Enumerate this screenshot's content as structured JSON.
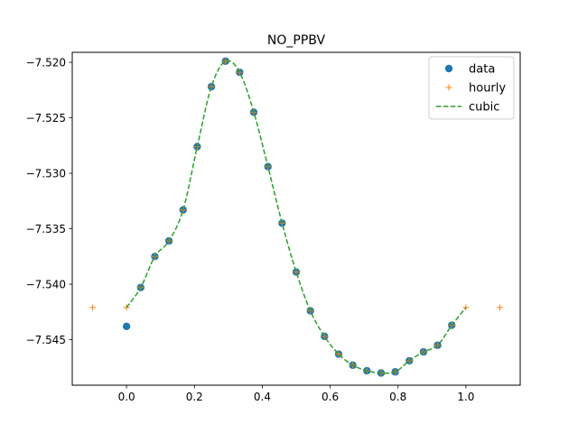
{
  "chart_data": {
    "type": "line",
    "title": "NO_PPBV",
    "xlabel": "",
    "ylabel": "",
    "xlim": [
      -0.16,
      1.16
    ],
    "ylim": [
      -7.5491,
      -7.5191
    ],
    "x_ticks": [
      0.0,
      0.2,
      0.4,
      0.6,
      0.8,
      1.0
    ],
    "x_tick_labels": [
      "0.0",
      "0.2",
      "0.4",
      "0.6",
      "0.8",
      "1.0"
    ],
    "y_ticks": [
      -7.52,
      -7.525,
      -7.53,
      -7.535,
      -7.54,
      -7.545
    ],
    "y_tick_labels": [
      "−7.520",
      "−7.525",
      "−7.530",
      "−7.535",
      "−7.540",
      "−7.545"
    ],
    "grid": false,
    "legend_position": "top-right",
    "series": [
      {
        "name": "data",
        "style": "markers-circle",
        "color": "#1f77b4",
        "x": [
          0.0,
          0.0417,
          0.0833,
          0.125,
          0.1667,
          0.2083,
          0.25,
          0.2917,
          0.3333,
          0.375,
          0.4167,
          0.4583,
          0.5,
          0.5417,
          0.5833,
          0.625,
          0.6667,
          0.7083,
          0.75,
          0.7917,
          0.8333,
          0.875,
          0.9167,
          0.9583
        ],
        "y": [
          -7.5438,
          -7.5403,
          -7.5375,
          -7.5361,
          -7.5333,
          -7.5276,
          -7.5222,
          -7.5199,
          -7.5209,
          -7.5245,
          -7.5294,
          -7.5345,
          -7.5389,
          -7.5424,
          -7.5447,
          -7.5463,
          -7.5473,
          -7.5478,
          -7.548,
          -7.5479,
          -7.5469,
          -7.5461,
          -7.5455,
          -7.5437
        ]
      },
      {
        "name": "hourly",
        "style": "markers-plus",
        "color": "#ff7f0e",
        "x": [
          -0.1,
          0.0,
          0.0417,
          0.0833,
          0.125,
          0.1667,
          0.2083,
          0.25,
          0.2917,
          0.3333,
          0.375,
          0.4167,
          0.4583,
          0.5,
          0.5417,
          0.5833,
          0.625,
          0.6667,
          0.7083,
          0.75,
          0.7917,
          0.8333,
          0.875,
          0.9167,
          0.9583,
          1.0,
          1.1
        ],
        "y": [
          -7.5421,
          -7.5421,
          -7.5403,
          -7.5375,
          -7.5361,
          -7.5333,
          -7.5276,
          -7.5222,
          -7.5199,
          -7.5209,
          -7.5245,
          -7.5294,
          -7.5345,
          -7.5389,
          -7.5424,
          -7.5447,
          -7.5463,
          -7.5473,
          -7.5478,
          -7.548,
          -7.5479,
          -7.5469,
          -7.5461,
          -7.5455,
          -7.5437,
          -7.5421,
          -7.5421
        ]
      },
      {
        "name": "cubic",
        "style": "dashed-line",
        "color": "#2ca02c",
        "x": [
          0.0,
          0.0417,
          0.0833,
          0.125,
          0.1667,
          0.2083,
          0.25,
          0.2917,
          0.3333,
          0.375,
          0.4167,
          0.4583,
          0.5,
          0.5417,
          0.5833,
          0.625,
          0.6667,
          0.7083,
          0.75,
          0.7917,
          0.8333,
          0.875,
          0.9167,
          0.9583,
          1.0
        ],
        "y": [
          -7.5421,
          -7.5403,
          -7.5375,
          -7.5361,
          -7.5333,
          -7.5276,
          -7.5222,
          -7.5199,
          -7.5209,
          -7.5245,
          -7.5294,
          -7.5345,
          -7.5389,
          -7.5424,
          -7.5447,
          -7.5463,
          -7.5473,
          -7.5478,
          -7.548,
          -7.5479,
          -7.5469,
          -7.5461,
          -7.5455,
          -7.5437,
          -7.5421
        ]
      }
    ]
  }
}
